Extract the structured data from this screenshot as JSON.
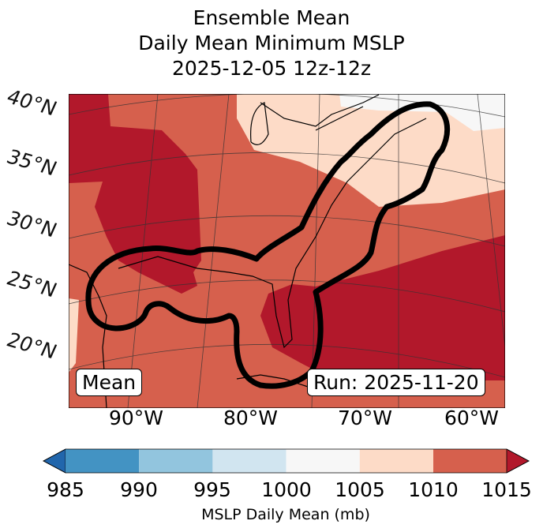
{
  "title": {
    "line1": "Ensemble Mean",
    "line2": "Daily Mean Minimum MSLP",
    "line3": "2025-12-05 12z-12z"
  },
  "map": {
    "lat_labels": [
      "40°N",
      "35°N",
      "30°N",
      "25°N",
      "20°N"
    ],
    "lon_labels": [
      "90°W",
      "80°W",
      "70°W",
      "60°W"
    ],
    "mean_label": "Mean",
    "run_label": "Run: 2025-11-20"
  },
  "colorbar": {
    "ticks": [
      "985",
      "990",
      "995",
      "1000",
      "1005",
      "1010",
      "1015"
    ],
    "label": "MSLP Daily Mean (mb)",
    "colors": [
      "#2166ac",
      "#4393c3",
      "#92c5de",
      "#d1e5f0",
      "#f7f7f7",
      "#fddbc7",
      "#d6604d",
      "#b2182b"
    ]
  }
}
